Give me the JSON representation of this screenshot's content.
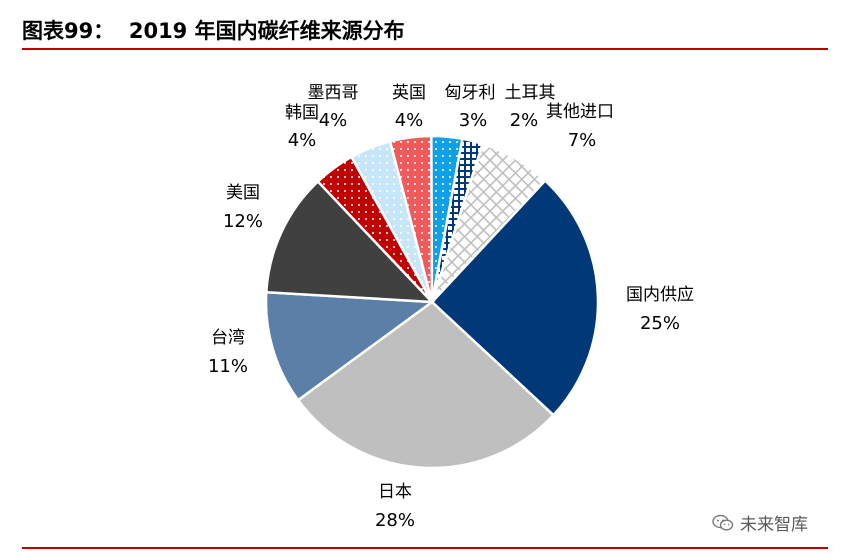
{
  "figure": {
    "title": "图表99：  2019 年国内碳纤维来源分布"
  },
  "watermark": {
    "text": "未来智库",
    "icon": "wechat-icon"
  },
  "chart_data": {
    "type": "pie",
    "slices": [
      {
        "label": "国内供应",
        "value": 25,
        "value_label": "25%",
        "color": "#003878",
        "pattern": "solid"
      },
      {
        "label": "日本",
        "value": 28,
        "value_label": "28%",
        "color": "#bfbfbf",
        "pattern": "solid"
      },
      {
        "label": "台湾",
        "value": 11,
        "value_label": "11%",
        "color": "#5b7fa6",
        "pattern": "solid"
      },
      {
        "label": "美国",
        "value": 12,
        "value_label": "12%",
        "color": "#404040",
        "pattern": "solid"
      },
      {
        "label": "韩国",
        "value": 4,
        "value_label": "4%",
        "color": "#c00000",
        "pattern": "dots"
      },
      {
        "label": "墨西哥",
        "value": 4,
        "value_label": "4%",
        "color": "#c7e6f7",
        "pattern": "dots"
      },
      {
        "label": "英国",
        "value": 4,
        "value_label": "4%",
        "color": "#f05a5a",
        "pattern": "dots"
      },
      {
        "label": "匈牙利",
        "value": 3,
        "value_label": "3%",
        "color": "#10a0e8",
        "pattern": "dots"
      },
      {
        "label": "土耳其",
        "value": 2,
        "value_label": "2%",
        "color": "#003878",
        "pattern": "cross"
      },
      {
        "label": "其他进口",
        "value": 7,
        "value_label": "7%",
        "color": "#bfbfbf",
        "pattern": "grid"
      }
    ]
  }
}
